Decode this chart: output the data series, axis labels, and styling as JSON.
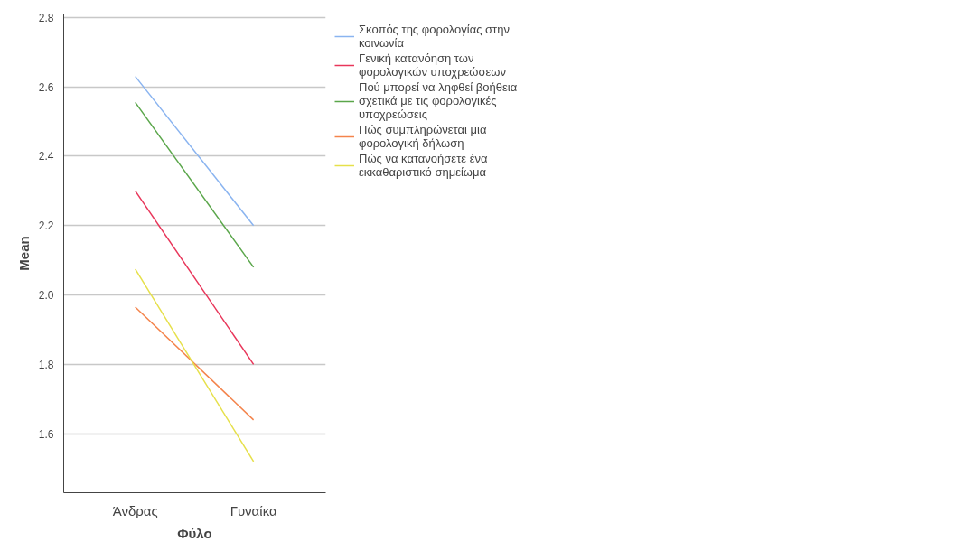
{
  "chart_data": {
    "type": "line",
    "xlabel": "Φύλο",
    "ylabel": "Mean",
    "categories": [
      "Άνδρας",
      "Γυναίκα"
    ],
    "series": [
      {
        "name": "Σκοπός της φορολογίας στην κοινωνία",
        "color": "#8ab4f0",
        "values": [
          2.63,
          2.2
        ]
      },
      {
        "name": "Γενική κατανόηση των φορολογικών υποχρεώσεων",
        "color": "#e8365a",
        "values": [
          2.3,
          1.8
        ]
      },
      {
        "name": "Πού μπορεί να ληφθεί βοήθεια σχετικά με τις φορολογικές υποχρεώσεις",
        "color": "#5aa64a",
        "values": [
          2.555,
          2.08
        ]
      },
      {
        "name": "Πώς συμπληρώνεται μια φορολογική δήλωση",
        "color": "#f4844c",
        "values": [
          1.965,
          1.64
        ]
      },
      {
        "name": "Πώς να κατανοήσετε ένα εκκαθαριστικό σημείωμα",
        "color": "#e6e04a",
        "values": [
          2.075,
          1.52
        ]
      }
    ],
    "ylim": [
      1.43,
      2.81
    ],
    "yticks": [
      {
        "value": 1.6,
        "label": "1.6"
      },
      {
        "value": 1.8,
        "label": "1.8"
      },
      {
        "value": 2.0,
        "label": "2.0"
      },
      {
        "value": 2.2,
        "label": "2.2"
      },
      {
        "value": 2.4,
        "label": "2.4"
      },
      {
        "value": 2.6,
        "label": "2.6"
      },
      {
        "value": 2.8,
        "label": "2.8"
      }
    ],
    "grid": "y",
    "legend": "top right",
    "marker": "none",
    "line_style": "solid"
  }
}
